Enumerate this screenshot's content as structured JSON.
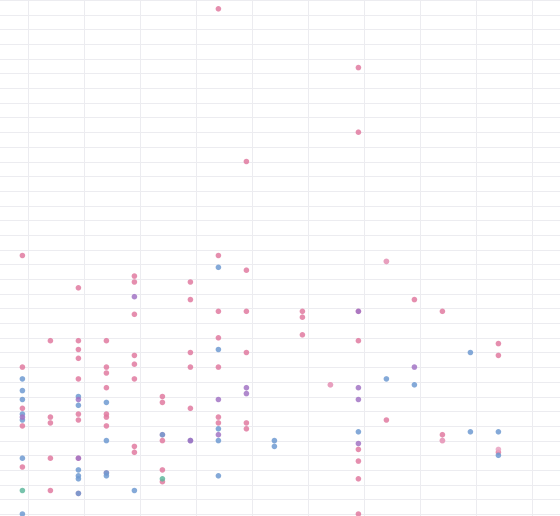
{
  "chart_data": {
    "type": "scatter",
    "title": "",
    "xlabel": "",
    "ylabel": "",
    "grid": true,
    "legend": "none",
    "xlim": [
      0,
      10
    ],
    "ylim": [
      0,
      17.5
    ],
    "x_gridlines": [
      0.5,
      1.5,
      2.5,
      3.5,
      4.5,
      5.5,
      6.5,
      7.5,
      8.5,
      9.5
    ],
    "y_gridlines": [
      0,
      0.5,
      1,
      1.5,
      2,
      2.5,
      3,
      3.5,
      4,
      4.5,
      5,
      5.5,
      6,
      6.5,
      7,
      7.5,
      8,
      8.5,
      9,
      9.5,
      10,
      10.5,
      11,
      11.5,
      12,
      12.5,
      13,
      13.5,
      14,
      14.5,
      15,
      15.5,
      16,
      16.5,
      17,
      17.5
    ],
    "series": [
      {
        "color": "#e07aa0",
        "points": [
          [
            0.4,
            8.8
          ],
          [
            0.4,
            5.0
          ],
          [
            0.4,
            3.6
          ],
          [
            0.4,
            3.0
          ],
          [
            0.4,
            1.6
          ],
          [
            0.9,
            5.9
          ],
          [
            0.9,
            3.3
          ],
          [
            0.9,
            3.1
          ],
          [
            0.9,
            1.9
          ],
          [
            0.9,
            0.8
          ],
          [
            1.4,
            7.7
          ],
          [
            1.4,
            5.9
          ],
          [
            1.4,
            5.6
          ],
          [
            1.4,
            5.3
          ],
          [
            1.4,
            4.6
          ],
          [
            1.4,
            3.4
          ],
          [
            1.4,
            3.2
          ],
          [
            1.4,
            1.9
          ],
          [
            1.4,
            0.7
          ],
          [
            1.9,
            5.9
          ],
          [
            1.9,
            5.0
          ],
          [
            1.9,
            4.8
          ],
          [
            1.9,
            4.3
          ],
          [
            1.9,
            3.4
          ],
          [
            1.9,
            3.3
          ],
          [
            1.9,
            3.0
          ],
          [
            1.9,
            1.4
          ],
          [
            2.4,
            8.1
          ],
          [
            2.4,
            7.9
          ],
          [
            2.4,
            6.8
          ],
          [
            2.4,
            5.4
          ],
          [
            2.4,
            5.1
          ],
          [
            2.4,
            4.6
          ],
          [
            2.4,
            2.3
          ],
          [
            2.4,
            2.1
          ],
          [
            2.9,
            4.0
          ],
          [
            2.9,
            3.8
          ],
          [
            2.9,
            2.7
          ],
          [
            2.9,
            2.5
          ],
          [
            2.9,
            1.5
          ],
          [
            2.9,
            1.1
          ],
          [
            3.4,
            7.9
          ],
          [
            3.4,
            7.3
          ],
          [
            3.4,
            5.5
          ],
          [
            3.4,
            5.0
          ],
          [
            3.4,
            3.6
          ],
          [
            3.4,
            2.5
          ],
          [
            3.9,
            17.2
          ],
          [
            3.9,
            8.8
          ],
          [
            3.9,
            6.9
          ],
          [
            3.9,
            6.0
          ],
          [
            3.9,
            5.0
          ],
          [
            3.9,
            3.3
          ],
          [
            3.9,
            3.1
          ],
          [
            4.4,
            12.0
          ],
          [
            4.4,
            8.3
          ],
          [
            4.4,
            6.9
          ],
          [
            4.4,
            5.5
          ],
          [
            4.4,
            3.1
          ],
          [
            4.4,
            2.9
          ],
          [
            5.4,
            6.9
          ],
          [
            5.4,
            6.7
          ],
          [
            5.4,
            6.1
          ],
          [
            5.9,
            4.4
          ],
          [
            6.4,
            15.2
          ],
          [
            6.4,
            13.0
          ],
          [
            6.4,
            6.9
          ],
          [
            6.4,
            5.9
          ],
          [
            6.4,
            2.2
          ],
          [
            6.4,
            1.8
          ],
          [
            6.4,
            1.2
          ],
          [
            6.4,
            0.0
          ],
          [
            6.9,
            8.6
          ],
          [
            6.9,
            3.2
          ],
          [
            7.4,
            7.3
          ],
          [
            7.9,
            6.9
          ],
          [
            7.9,
            2.7
          ],
          [
            7.9,
            2.5
          ],
          [
            8.9,
            5.8
          ],
          [
            8.9,
            5.4
          ],
          [
            8.9,
            2.1
          ]
        ]
      },
      {
        "color": "#6f9ad1",
        "points": [
          [
            0.4,
            4.6
          ],
          [
            0.4,
            4.2
          ],
          [
            0.4,
            3.9
          ],
          [
            0.4,
            3.4
          ],
          [
            0.4,
            3.2
          ],
          [
            0.4,
            1.9
          ],
          [
            0.4,
            0.0
          ],
          [
            1.4,
            4.0
          ],
          [
            1.4,
            3.7
          ],
          [
            1.4,
            1.5
          ],
          [
            1.4,
            1.3
          ],
          [
            1.4,
            1.2
          ],
          [
            1.4,
            0.7
          ],
          [
            1.9,
            3.8
          ],
          [
            1.9,
            2.5
          ],
          [
            1.9,
            1.4
          ],
          [
            1.9,
            1.3
          ],
          [
            2.4,
            0.8
          ],
          [
            2.9,
            2.7
          ],
          [
            3.4,
            2.5
          ],
          [
            3.9,
            8.4
          ],
          [
            3.9,
            5.6
          ],
          [
            3.9,
            2.9
          ],
          [
            3.9,
            2.5
          ],
          [
            3.9,
            1.3
          ],
          [
            4.9,
            2.5
          ],
          [
            4.9,
            2.3
          ],
          [
            6.4,
            2.8
          ],
          [
            6.9,
            4.6
          ],
          [
            7.4,
            4.4
          ],
          [
            8.4,
            5.5
          ],
          [
            8.4,
            2.8
          ],
          [
            8.9,
            2.8
          ],
          [
            8.9,
            2.0
          ]
        ]
      },
      {
        "color": "#a274c4",
        "points": [
          [
            0.4,
            3.3
          ],
          [
            1.4,
            3.9
          ],
          [
            1.4,
            1.9
          ],
          [
            2.4,
            7.4
          ],
          [
            3.4,
            2.5
          ],
          [
            3.9,
            3.9
          ],
          [
            3.9,
            2.7
          ],
          [
            4.4,
            4.3
          ],
          [
            4.4,
            4.1
          ],
          [
            6.4,
            6.9
          ],
          [
            6.4,
            4.3
          ],
          [
            6.4,
            3.9
          ],
          [
            6.4,
            2.4
          ],
          [
            7.4,
            5.0
          ]
        ]
      },
      {
        "color": "#5fb89e",
        "points": [
          [
            0.4,
            0.8
          ],
          [
            2.9,
            1.2
          ]
        ]
      },
      {
        "color": "#e9a2c1",
        "points": [
          [
            5.9,
            4.4
          ],
          [
            6.9,
            8.6
          ],
          [
            7.9,
            2.5
          ],
          [
            8.9,
            2.2
          ]
        ]
      }
    ]
  }
}
